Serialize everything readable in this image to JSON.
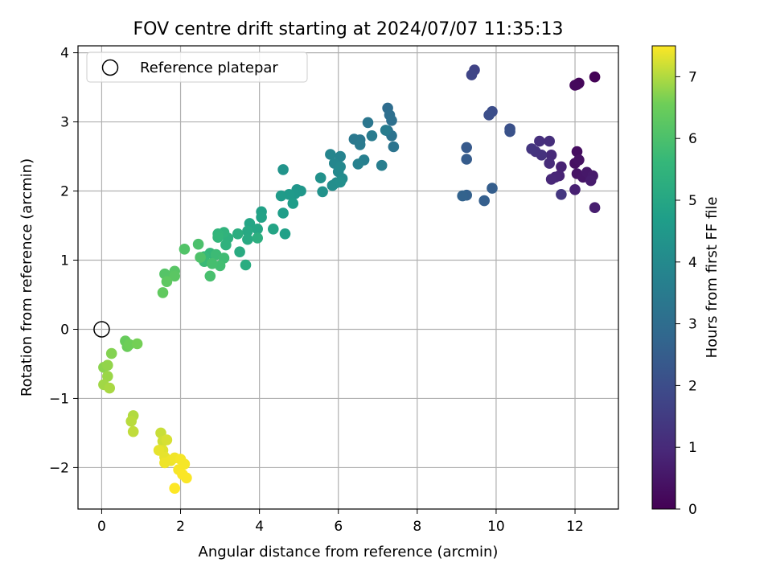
{
  "chart_data": {
    "type": "scatter",
    "title": "FOV centre drift starting at 2024/07/07 11:35:13",
    "xlabel": "Angular distance from reference (arcmin)",
    "ylabel": "Rotation from reference (arcmin)",
    "xlim": [
      -0.6,
      13.1
    ],
    "ylim": [
      -2.6,
      4.1
    ],
    "xticks": [
      0,
      2,
      4,
      6,
      8,
      10,
      12
    ],
    "yticks": [
      -2,
      -1,
      0,
      1,
      2,
      3,
      4
    ],
    "xtick_labels": [
      "0",
      "2",
      "4",
      "6",
      "8",
      "10",
      "12"
    ],
    "ytick_labels": [
      "−2",
      "−1",
      "0",
      "1",
      "2",
      "3",
      "4"
    ],
    "grid": true,
    "legend": {
      "label": "Reference platepar",
      "placement": "top-left"
    },
    "reference_point": {
      "x": 0,
      "y": 0
    },
    "colorbar": {
      "label": "Hours from first FF file",
      "colormap": "viridis",
      "range": [
        0,
        7.5
      ],
      "ticks": [
        0,
        1,
        2,
        3,
        4,
        5,
        6,
        7
      ],
      "tick_labels": [
        "0",
        "1",
        "2",
        "3",
        "4",
        "5",
        "6",
        "7"
      ]
    },
    "series": [
      {
        "points": [
          [
            12.5,
            3.65,
            0.05
          ],
          [
            12.05,
            3.54,
            0.1
          ],
          [
            12.1,
            3.56,
            0.15
          ],
          [
            12.0,
            3.53,
            0.2
          ],
          [
            12.05,
            2.57,
            0.3
          ],
          [
            12.0,
            2.4,
            0.35
          ],
          [
            12.1,
            2.45,
            0.4
          ],
          [
            12.05,
            2.25,
            0.45
          ],
          [
            12.2,
            2.2,
            0.5
          ],
          [
            12.3,
            2.27,
            0.55
          ],
          [
            12.45,
            2.22,
            0.6
          ],
          [
            12.4,
            2.15,
            0.65
          ],
          [
            12.5,
            1.76,
            0.7
          ],
          [
            12.0,
            2.02,
            0.75
          ],
          [
            11.65,
            2.35,
            0.8
          ],
          [
            11.6,
            2.22,
            0.85
          ],
          [
            11.5,
            2.2,
            0.9
          ],
          [
            11.4,
            2.17,
            0.95
          ],
          [
            11.4,
            2.52,
            1.0
          ],
          [
            11.35,
            2.4,
            1.05
          ],
          [
            11.35,
            2.72,
            1.1
          ],
          [
            11.1,
            2.72,
            1.15
          ],
          [
            11.15,
            2.52,
            1.2
          ],
          [
            11.0,
            2.57,
            1.25
          ],
          [
            10.9,
            2.61,
            1.3
          ],
          [
            11.65,
            1.95,
            1.35
          ],
          [
            9.45,
            3.75,
            1.7
          ],
          [
            9.38,
            3.68,
            1.75
          ],
          [
            9.9,
            3.15,
            2.0
          ],
          [
            9.82,
            3.1,
            2.05
          ],
          [
            10.35,
            2.9,
            2.1
          ],
          [
            10.35,
            2.86,
            2.15
          ],
          [
            9.25,
            2.63,
            2.4
          ],
          [
            9.25,
            2.46,
            2.45
          ],
          [
            9.9,
            2.04,
            2.5
          ],
          [
            9.7,
            1.86,
            2.55
          ],
          [
            9.25,
            1.94,
            2.6
          ],
          [
            9.15,
            1.93,
            2.65
          ],
          [
            7.25,
            3.2,
            3.0
          ],
          [
            7.3,
            3.1,
            3.05
          ],
          [
            7.35,
            3.02,
            3.1
          ],
          [
            7.25,
            2.87,
            3.15
          ],
          [
            7.35,
            2.8,
            3.2
          ],
          [
            7.4,
            2.64,
            3.25
          ],
          [
            6.75,
            2.99,
            3.3
          ],
          [
            6.55,
            2.74,
            3.35
          ],
          [
            6.4,
            2.75,
            3.4
          ],
          [
            6.55,
            2.67,
            3.45
          ],
          [
            6.85,
            2.8,
            3.5
          ],
          [
            7.2,
            2.88,
            3.55
          ],
          [
            7.1,
            2.37,
            3.6
          ],
          [
            6.65,
            2.45,
            3.65
          ],
          [
            6.5,
            2.39,
            3.7
          ],
          [
            6.05,
            2.5,
            3.8
          ],
          [
            5.8,
            2.53,
            3.85
          ],
          [
            5.9,
            2.4,
            3.9
          ],
          [
            6.05,
            2.35,
            3.95
          ],
          [
            6.0,
            2.28,
            4.0
          ],
          [
            6.1,
            2.18,
            4.05
          ],
          [
            5.95,
            2.12,
            4.1
          ],
          [
            5.85,
            2.08,
            4.15
          ],
          [
            6.05,
            2.13,
            4.2
          ],
          [
            5.55,
            2.19,
            4.25
          ],
          [
            5.6,
            1.99,
            4.3
          ],
          [
            4.6,
            2.31,
            4.35
          ],
          [
            4.95,
            2.02,
            4.4
          ],
          [
            5.05,
            2.0,
            4.45
          ],
          [
            4.9,
            1.96,
            4.5
          ],
          [
            4.75,
            1.95,
            4.55
          ],
          [
            4.55,
            1.93,
            4.6
          ],
          [
            4.85,
            1.82,
            4.65
          ],
          [
            4.6,
            1.68,
            4.7
          ],
          [
            4.65,
            1.38,
            4.75
          ],
          [
            4.05,
            1.7,
            4.8
          ],
          [
            4.05,
            1.62,
            4.85
          ],
          [
            4.35,
            1.45,
            4.9
          ],
          [
            3.75,
            1.53,
            4.95
          ],
          [
            3.95,
            1.45,
            5.0
          ],
          [
            3.7,
            1.42,
            5.05
          ],
          [
            3.7,
            1.3,
            5.1
          ],
          [
            3.5,
            1.12,
            5.15
          ],
          [
            3.65,
            0.93,
            5.2
          ],
          [
            3.45,
            1.38,
            5.25
          ],
          [
            3.95,
            1.32,
            5.3
          ],
          [
            3.2,
            1.32,
            5.35
          ],
          [
            3.15,
            1.22,
            5.4
          ],
          [
            3.1,
            1.4,
            5.45
          ],
          [
            2.95,
            1.38,
            5.5
          ],
          [
            2.95,
            1.33,
            5.55
          ],
          [
            2.75,
            1.1,
            5.6
          ],
          [
            2.6,
            1.05,
            5.65
          ],
          [
            2.6,
            0.98,
            5.7
          ],
          [
            2.9,
            1.08,
            5.75
          ],
          [
            3.1,
            1.03,
            5.8
          ],
          [
            3.0,
            0.92,
            5.85
          ],
          [
            2.8,
            0.95,
            5.9
          ],
          [
            2.75,
            0.77,
            5.95
          ],
          [
            2.45,
            1.23,
            6.0
          ],
          [
            2.5,
            1.04,
            6.05
          ],
          [
            2.1,
            1.16,
            6.1
          ],
          [
            1.6,
            0.8,
            6.15
          ],
          [
            1.85,
            0.84,
            6.2
          ],
          [
            1.85,
            0.77,
            6.25
          ],
          [
            1.65,
            0.69,
            6.3
          ],
          [
            1.55,
            0.53,
            6.35
          ],
          [
            0.6,
            -0.17,
            6.45
          ],
          [
            0.65,
            -0.25,
            6.5
          ],
          [
            0.7,
            -0.22,
            6.55
          ],
          [
            0.9,
            -0.21,
            6.6
          ],
          [
            0.25,
            -0.35,
            6.7
          ],
          [
            0.05,
            -0.55,
            6.75
          ],
          [
            0.15,
            -0.52,
            6.8
          ],
          [
            0.15,
            -0.68,
            6.85
          ],
          [
            0.05,
            -0.8,
            6.9
          ],
          [
            0.2,
            -0.85,
            6.95
          ],
          [
            0.8,
            -1.25,
            7.0
          ],
          [
            0.75,
            -1.33,
            7.05
          ],
          [
            0.8,
            -1.48,
            7.1
          ],
          [
            1.5,
            -1.5,
            7.15
          ],
          [
            1.55,
            -1.62,
            7.2
          ],
          [
            1.65,
            -1.6,
            7.25
          ],
          [
            1.55,
            -1.75,
            7.3
          ],
          [
            1.45,
            -1.75,
            7.35
          ],
          [
            1.6,
            -1.85,
            7.35
          ],
          [
            1.75,
            -1.9,
            7.4
          ],
          [
            1.6,
            -1.93,
            7.4
          ],
          [
            1.85,
            -1.86,
            7.42
          ],
          [
            2.0,
            -1.88,
            7.45
          ],
          [
            2.1,
            -1.95,
            7.45
          ],
          [
            1.95,
            -2.03,
            7.46
          ],
          [
            2.05,
            -2.1,
            7.48
          ],
          [
            2.15,
            -2.15,
            7.48
          ],
          [
            1.85,
            -2.3,
            7.5
          ]
        ]
      }
    ]
  }
}
